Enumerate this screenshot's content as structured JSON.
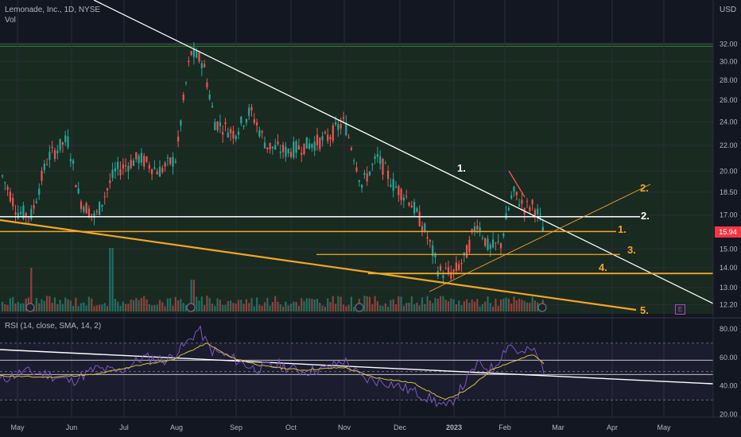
{
  "header": {
    "symbol_line": "Lemonade, Inc., 1D, NYSE",
    "volume_label": "Vol",
    "currency": "USD",
    "last_price": "15.94"
  },
  "rsi": {
    "label": "RSI (14, close, SMA, 14, 2)",
    "ticks": [
      "80.00",
      "60.00",
      "40.00",
      "20.00"
    ]
  },
  "price_axis_ticks": [
    "32.00",
    "30.00",
    "28.00",
    "26.00",
    "24.00",
    "22.00",
    "20.00",
    "18.50",
    "17.00",
    "15.00",
    "14.00",
    "13.00",
    "12.20"
  ],
  "time_axis_ticks": [
    "May",
    "Jun",
    "Jul",
    "Aug",
    "Sep",
    "Oct",
    "Nov",
    "Dec",
    "2023",
    "Feb",
    "Mar",
    "Apr",
    "May"
  ],
  "annotations": {
    "white": [
      "1.",
      "2."
    ],
    "orange": [
      "1.",
      "2.",
      "3.",
      "4.",
      "5."
    ]
  },
  "earnings_marker": "E",
  "colors": {
    "background": "#131722",
    "zone_fill": "#1f3a1f",
    "up": "#26a69a",
    "down": "#ef5350",
    "orange": "#f5a623",
    "white": "#ffffff",
    "rsi_line": "#7e57c2",
    "rsi_sma": "#d4c23c"
  },
  "chart_data": {
    "type": "candlestick",
    "y_scale": "log",
    "ylim": [
      11.8,
      33.0
    ],
    "key_levels": [
      32.0,
      16.9,
      16.0,
      14.7,
      13.7
    ],
    "rsi_ylim": [
      18,
      85
    ],
    "rsi_bands": [
      70,
      50,
      30
    ],
    "rsi_levels": [
      58,
      48
    ]
  }
}
